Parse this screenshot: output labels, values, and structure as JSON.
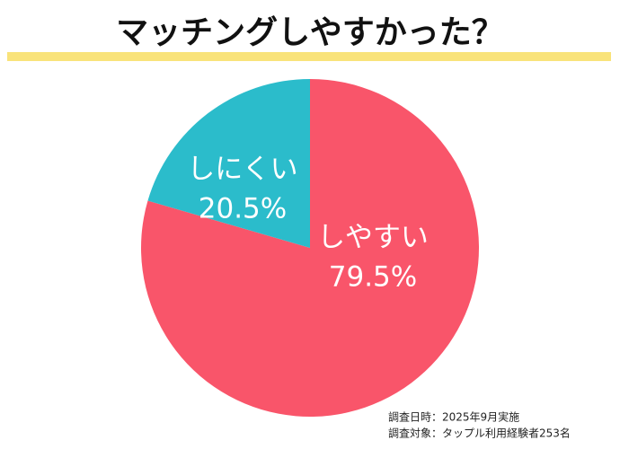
{
  "chart_data": {
    "type": "pie",
    "title": "マッチングしやすかった？",
    "categories": [
      "しやすい",
      "しにくい"
    ],
    "values": [
      79.5,
      20.5
    ],
    "value_labels": [
      "79.5%",
      "20.5%"
    ],
    "colors": [
      "#f9556a",
      "#2bbccb"
    ],
    "notes": [
      "調査日時：2025年9月実施",
      "調査対象：タップル利用経験者253名"
    ]
  }
}
